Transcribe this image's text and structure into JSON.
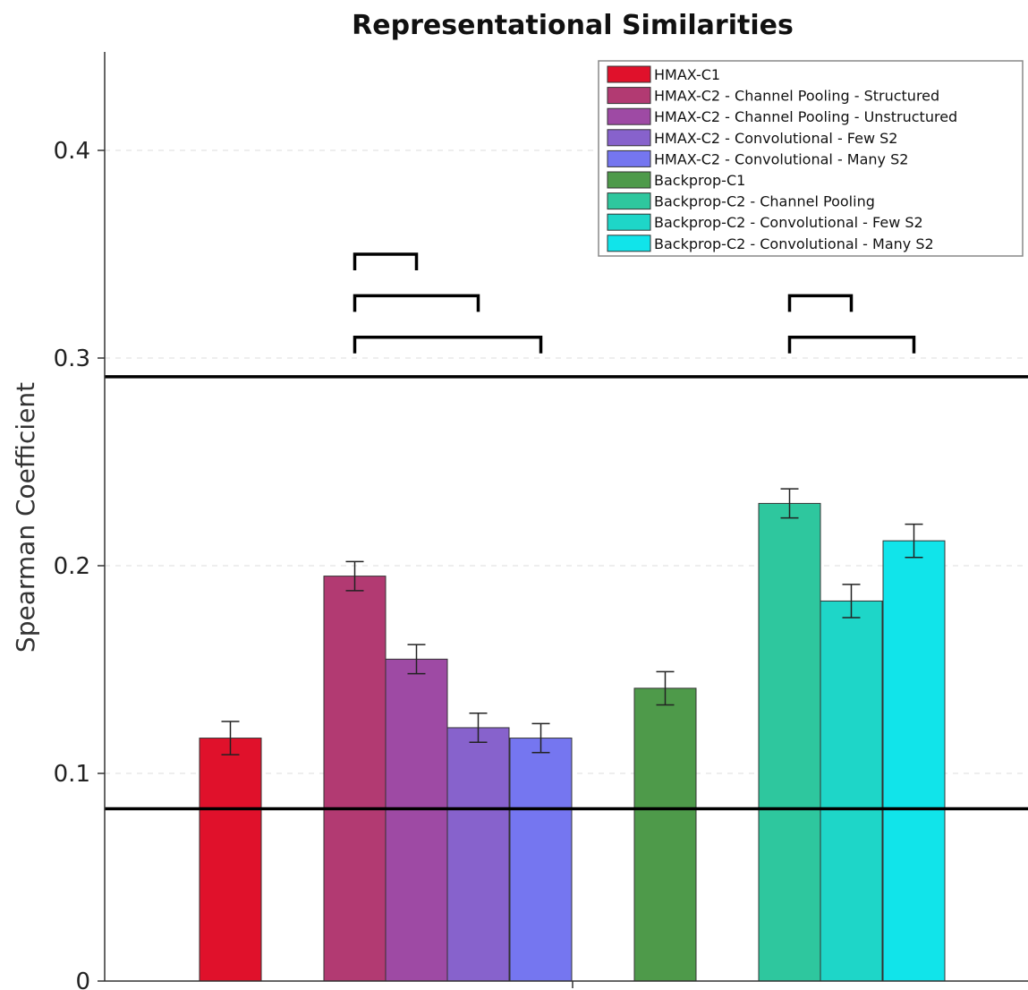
{
  "chart_data": {
    "type": "bar",
    "title": "Representational Similarities",
    "xlabel": "",
    "ylabel": "Spearman Coefficient",
    "ylim": [
      0,
      0.45
    ],
    "yticks": [
      0,
      0.1,
      0.2,
      0.3,
      0.4
    ],
    "ytick_labels": [
      "0",
      "0.1",
      "0.2",
      "0.3",
      "0.4"
    ],
    "grid": "horizontal dashed",
    "legend_position": "top-right",
    "series": [
      {
        "name": "HMAX-C1",
        "value": 0.117,
        "error": 0.008,
        "color": "#e0112b"
      },
      {
        "name": "HMAX-C2 - Channel Pooling - Structured",
        "value": 0.195,
        "error": 0.007,
        "color": "#b23a72"
      },
      {
        "name": "HMAX-C2 - Channel Pooling - Unstructured",
        "value": 0.155,
        "error": 0.007,
        "color": "#9e4aa4"
      },
      {
        "name": "HMAX-C2 - Convolutional - Few S2",
        "value": 0.122,
        "error": 0.007,
        "color": "#8762cc"
      },
      {
        "name": "HMAX-C2 - Convolutional - Many S2",
        "value": 0.117,
        "error": 0.007,
        "color": "#7576f0"
      },
      {
        "name": "Backprop-C1",
        "value": 0.141,
        "error": 0.008,
        "color": "#4e9a4a"
      },
      {
        "name": "Backprop-C2 - Channel Pooling",
        "value": 0.23,
        "error": 0.007,
        "color": "#2ec79e"
      },
      {
        "name": "Backprop-C2 - Convolutional - Few S2",
        "value": 0.183,
        "error": 0.008,
        "color": "#1ed6c8"
      },
      {
        "name": "Backprop-C2 - Convolutional - Many S2",
        "value": 0.212,
        "error": 0.008,
        "color": "#11e4ea"
      }
    ],
    "reference_lines": [
      0.083,
      0.291
    ],
    "significance_brackets": [
      {
        "from": 1,
        "to": 2,
        "level": 0.35
      },
      {
        "from": 1,
        "to": 3,
        "level": 0.33
      },
      {
        "from": 1,
        "to": 4,
        "level": 0.31
      },
      {
        "from": 6,
        "to": 7,
        "level": 0.33
      },
      {
        "from": 6,
        "to": 8,
        "level": 0.31
      }
    ]
  }
}
